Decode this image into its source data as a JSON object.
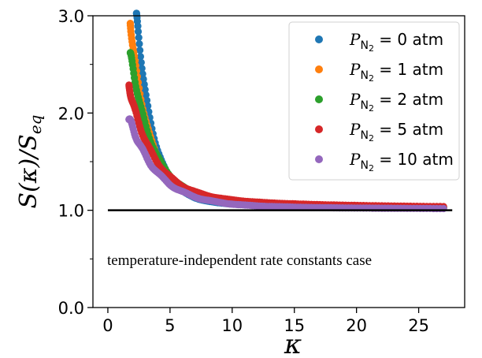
{
  "chart_data": {
    "type": "scatter",
    "xlabel": "κ",
    "ylabel": "S(κ)/S",
    "ylabel_sub": "eq",
    "xlim": [
      -1.2,
      28.7
    ],
    "ylim": [
      0.0,
      3.0
    ],
    "x_ticks": [
      0,
      5,
      10,
      15,
      20,
      25
    ],
    "y_ticks": [
      "0.0",
      "1.0",
      "2.0",
      "3.0"
    ],
    "y_minor_ticks": [
      0.5,
      1.5,
      2.5
    ],
    "grid": false,
    "legend_position": "top-right",
    "reference_line": {
      "y": 1.0,
      "x": [
        0,
        27.7
      ],
      "color": "#000000"
    },
    "annotation": "temperature-independent rate constants case",
    "series": [
      {
        "name": "P_N2 = 0 atm",
        "label_prefix": "P",
        "label_sub": "N",
        "label_subsub": "2",
        "label_rest": " = 0 atm",
        "color": "#1f77b4",
        "kappa_min": 2.3,
        "s0": 2.86,
        "decay": 1.3
      },
      {
        "name": "P_N2 = 1 atm",
        "label_prefix": "P",
        "label_sub": "N",
        "label_subsub": "2",
        "label_rest": " = 1 atm",
        "color": "#ff7f0e",
        "kappa_min": 1.8,
        "s0": 2.69,
        "decay": 1.55
      },
      {
        "name": "P_N2 = 2 atm",
        "label_prefix": "P",
        "label_sub": "N",
        "label_subsub": "2",
        "label_rest": " = 2 atm",
        "color": "#2ca02c",
        "kappa_min": 1.8,
        "s0": 2.38,
        "decay": 1.75
      },
      {
        "name": "P_N2 = 5 atm",
        "label_prefix": "P",
        "label_sub": "N",
        "label_subsub": "2",
        "label_rest": " = 5 atm",
        "color": "#d62728",
        "kappa_min": 1.7,
        "s0": 1.97,
        "decay": 2.0
      },
      {
        "name": "P_N2 = 10 atm",
        "label_prefix": "P",
        "label_sub": "N",
        "label_subsub": "2",
        "label_rest": " = 10 atm",
        "color": "#9467bd",
        "kappa_min": 1.7,
        "s0": 1.82,
        "decay": 2.3
      }
    ],
    "kappa_max": 27.0,
    "points_per_series": 150
  }
}
